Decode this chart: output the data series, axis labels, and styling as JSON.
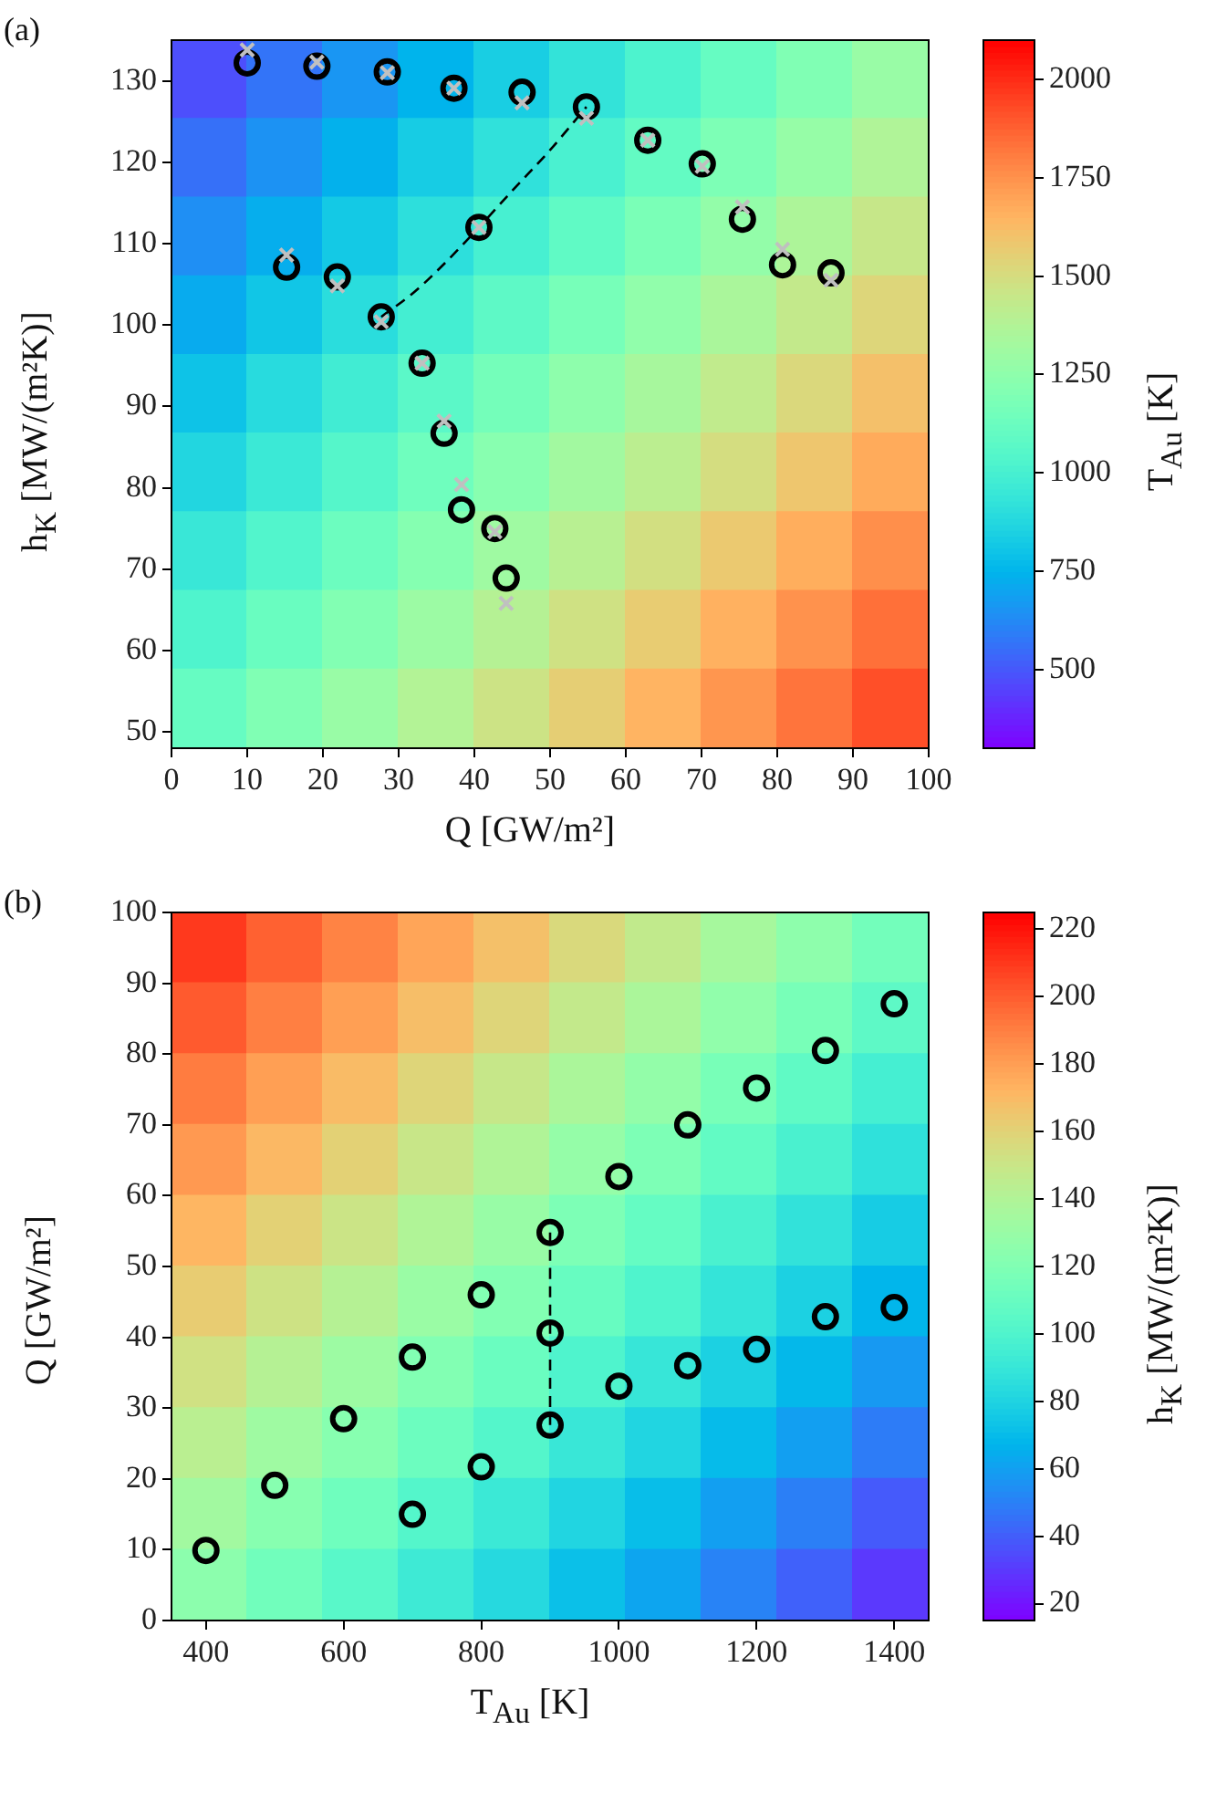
{
  "chart_data": [
    {
      "type": "heatmap",
      "clabel": "T$_{Au}$ [K]",
      "clim": [
        300,
        2100
      ],
      "cticks": [
        500,
        750,
        1000,
        1250,
        1500,
        1750,
        2000
      ],
      "categories": [
        null,
        null,
        null,
        null,
        null,
        null,
        null,
        null,
        null,
        null
      ],
      "y_categories": [
        null,
        null,
        null,
        null,
        null,
        null,
        null,
        null,
        null
      ],
      "cells": [
        [
          480,
          570,
          660,
          750,
          840,
          930,
          1020,
          1110,
          1200,
          1290
        ],
        [
          560,
          650,
          740,
          830,
          920,
          1010,
          1100,
          1190,
          1280,
          1370
        ],
        [
          640,
          730,
          820,
          910,
          1000,
          1090,
          1180,
          1270,
          1360,
          1450
        ],
        [
          720,
          810,
          900,
          990,
          1080,
          1170,
          1260,
          1350,
          1440,
          1530
        ],
        [
          800,
          890,
          980,
          1070,
          1160,
          1250,
          1340,
          1430,
          1520,
          1610
        ],
        [
          870,
          960,
          1050,
          1140,
          1230,
          1320,
          1410,
          1500,
          1590,
          1680
        ],
        [
          950,
          1040,
          1130,
          1220,
          1310,
          1400,
          1490,
          1580,
          1670,
          1760
        ],
        [
          1030,
          1120,
          1210,
          1300,
          1390,
          1480,
          1570,
          1660,
          1750,
          1840
        ],
        [
          1110,
          1200,
          1290,
          1380,
          1470,
          1560,
          1650,
          1740,
          1830,
          1920
        ]
      ]
    },
    {
      "type": "scatter",
      "annotations": [
        "(a)"
      ],
      "xlabel": "Q [GW/m²]",
      "ylabel": "h$_{K}$ [MW/(m²K)]",
      "xlim": [
        0,
        100
      ],
      "xticks": [
        0,
        10,
        20,
        30,
        40,
        50,
        60,
        70,
        80,
        90,
        100
      ],
      "ylim": [
        48,
        135
      ],
      "yticks": [
        50,
        60,
        70,
        80,
        90,
        100,
        110,
        120,
        130
      ],
      "series": [
        {
          "type": "line",
          "color": "#000000",
          "line_style": "dashed",
          "marker": "none",
          "x": [
            27.7,
            32,
            36,
            40.6,
            45,
            50,
            54.8
          ],
          "values": [
            101,
            104,
            107.5,
            112,
            116.5,
            121.5,
            126.8
          ]
        },
        {
          "type": "scatter",
          "color": "#000000",
          "marker": "circle",
          "x": [
            10,
            19.2,
            28.5,
            37.3,
            46.3,
            54.8,
            62.9,
            70.1,
            75.4,
            80.7,
            87.1,
            15.2,
            21.9,
            27.7,
            33.1,
            36,
            38.3,
            42.7,
            44.2,
            40.6
          ],
          "values": [
            132.2,
            131.8,
            131.1,
            129.1,
            128.6,
            126.8,
            122.7,
            119.8,
            113,
            107.4,
            106.4,
            107.1,
            105.9,
            101,
            95.3,
            86.7,
            77.3,
            75,
            68.9,
            112
          ]
        },
        {
          "type": "scatter",
          "color": "#c0c0c0",
          "marker": "cross",
          "x": [
            10,
            19.2,
            28.5,
            37.3,
            46.3,
            54.8,
            62.9,
            70.1,
            75.4,
            80.7,
            87.1,
            15.2,
            21.9,
            27.7,
            33.1,
            36,
            38.3,
            42.7,
            44.2,
            40.6
          ],
          "values": [
            133.8,
            132.3,
            131,
            129.1,
            127.3,
            125.4,
            122.7,
            119.5,
            114.5,
            109.3,
            105.5,
            108.6,
            104.8,
            100.4,
            95.3,
            88.2,
            80.4,
            74.6,
            65.8,
            112
          ]
        }
      ]
    },
    {
      "type": "heatmap",
      "clabel": "h$_{K}$ [MW/(m²K)]",
      "clim": [
        15,
        225
      ],
      "cticks": [
        20,
        40,
        60,
        80,
        100,
        120,
        140,
        160,
        180,
        200,
        220
      ],
      "categories": [
        null,
        null,
        null,
        null,
        null,
        null,
        null,
        null,
        null,
        null
      ],
      "y_categories": [
        null,
        null,
        null,
        null,
        null,
        null,
        null,
        null,
        null,
        null
      ],
      "cells": [
        [
          210,
          199,
          189,
          178,
          168,
          157,
          147,
          136,
          126,
          115
        ],
        [
          201,
          190,
          180,
          169,
          159,
          148,
          138,
          127,
          117,
          106
        ],
        [
          191,
          180,
          170,
          159,
          149,
          138,
          128,
          117,
          107,
          96
        ],
        [
          182,
          171,
          161,
          150,
          140,
          129,
          119,
          108,
          98,
          87
        ],
        [
          172,
          161,
          151,
          140,
          130,
          119,
          109,
          98,
          88,
          77
        ],
        [
          163,
          152,
          142,
          131,
          121,
          110,
          100,
          89,
          79,
          68
        ],
        [
          153,
          142,
          132,
          121,
          111,
          100,
          90,
          79,
          69,
          58
        ],
        [
          144,
          133,
          123,
          112,
          102,
          91,
          81,
          70,
          60,
          49
        ],
        [
          134,
          123,
          113,
          102,
          92,
          81,
          71,
          60,
          50,
          39
        ],
        [
          125,
          114,
          104,
          93,
          83,
          72,
          62,
          51,
          41,
          30
        ]
      ]
    },
    {
      "type": "scatter",
      "annotations": [
        "(b)"
      ],
      "xlabel": "T$_{Au}$ [K]",
      "ylabel": "Q [GW/m²]",
      "xlim": [
        350,
        1450
      ],
      "xticks": [
        400,
        600,
        800,
        1000,
        1200,
        1400
      ],
      "ylim": [
        0,
        100
      ],
      "yticks": [
        0,
        10,
        20,
        30,
        40,
        50,
        60,
        70,
        80,
        90,
        100
      ],
      "series": [
        {
          "type": "line",
          "color": "#000000",
          "line_style": "dashed",
          "marker": "none",
          "x": [
            900,
            900
          ],
          "values": [
            27.6,
            54.8
          ]
        },
        {
          "type": "scatter",
          "color": "#000000",
          "marker": "circle",
          "x": [
            400,
            500,
            600,
            700,
            800,
            900,
            1000,
            1100,
            1200,
            1300,
            1400,
            700,
            800,
            900,
            1000,
            1100,
            1200,
            1300,
            1400,
            900
          ],
          "values": [
            9.9,
            19.1,
            28.5,
            37.2,
            46,
            54.8,
            62.7,
            70,
            75.2,
            80.5,
            87.1,
            15,
            21.7,
            27.6,
            33.1,
            36,
            38.3,
            42.9,
            44.2,
            40.6
          ]
        }
      ]
    }
  ]
}
